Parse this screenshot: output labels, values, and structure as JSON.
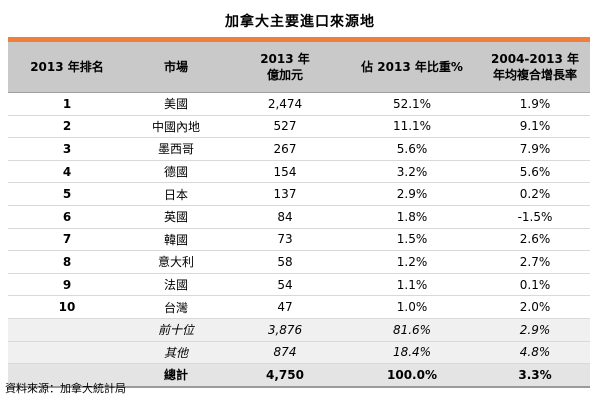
{
  "title": "加拿大主要進口來源地",
  "headers": {
    "rank": "2013 年排名",
    "market": "市場",
    "value_line1": "2013 年",
    "value_line2": "億加元",
    "share": "佔 2013 年比重%",
    "growth_line1": "2004-2013 年",
    "growth_line2": "年均複合增長率"
  },
  "rows": [
    {
      "rank": "1",
      "market": "美國",
      "value": "2,474",
      "share": "52.1%",
      "growth": "1.9%"
    },
    {
      "rank": "2",
      "market": "中國內地",
      "value": "527",
      "share": "11.1%",
      "growth": "9.1%"
    },
    {
      "rank": "3",
      "market": "墨西哥",
      "value": "267",
      "share": "5.6%",
      "growth": "7.9%"
    },
    {
      "rank": "4",
      "market": "德國",
      "value": "154",
      "share": "3.2%",
      "growth": "5.6%"
    },
    {
      "rank": "5",
      "market": "日本",
      "value": "137",
      "share": "2.9%",
      "growth": "0.2%"
    },
    {
      "rank": "6",
      "market": "英國",
      "value": "84",
      "share": "1.8%",
      "growth": "-1.5%"
    },
    {
      "rank": "7",
      "market": "韓國",
      "value": "73",
      "share": "1.5%",
      "growth": "2.6%"
    },
    {
      "rank": "8",
      "market": "意大利",
      "value": "58",
      "share": "1.2%",
      "growth": "2.7%"
    },
    {
      "rank": "9",
      "market": "法國",
      "value": "54",
      "share": "1.1%",
      "growth": "0.1%"
    },
    {
      "rank": "10",
      "market": "台灣",
      "value": "47",
      "share": "1.0%",
      "growth": "2.0%"
    }
  ],
  "top10": {
    "market": "前十位",
    "value": "3,876",
    "share": "81.6%",
    "growth": "2.9%"
  },
  "others": {
    "market": "其他",
    "value": "874",
    "share": "18.4%",
    "growth": "4.8%"
  },
  "total": {
    "market": "總計",
    "value": "4,750",
    "share": "100.0%",
    "growth": "3.3%"
  },
  "source": "資料來源：加拿大統計局",
  "colors": {
    "accent": "#f07f3c",
    "header_bg": "#c9c9c9"
  }
}
